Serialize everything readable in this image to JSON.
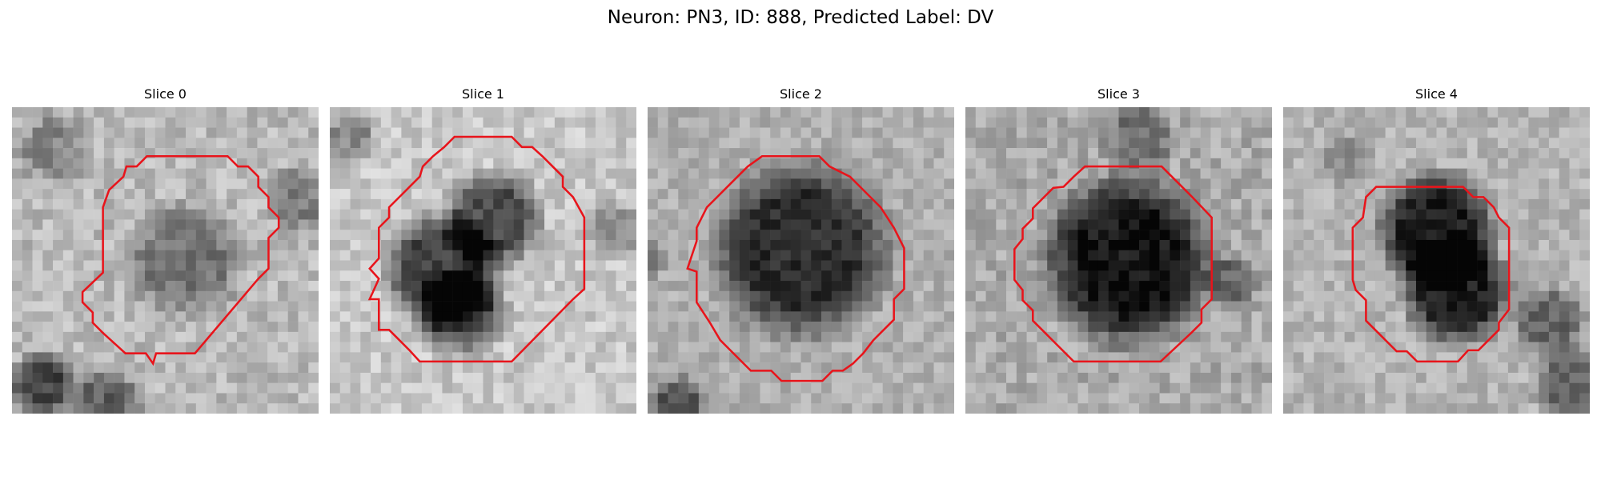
{
  "figure": {
    "title": "Neuron: PN3, ID: 888, Predicted Label: DV"
  },
  "contour_color": "#e8141b",
  "panels": [
    {
      "title": "Slice 0"
    },
    {
      "title": "Slice 1"
    },
    {
      "title": "Slice 2"
    },
    {
      "title": "Slice 3"
    },
    {
      "title": "Slice 4"
    }
  ]
}
